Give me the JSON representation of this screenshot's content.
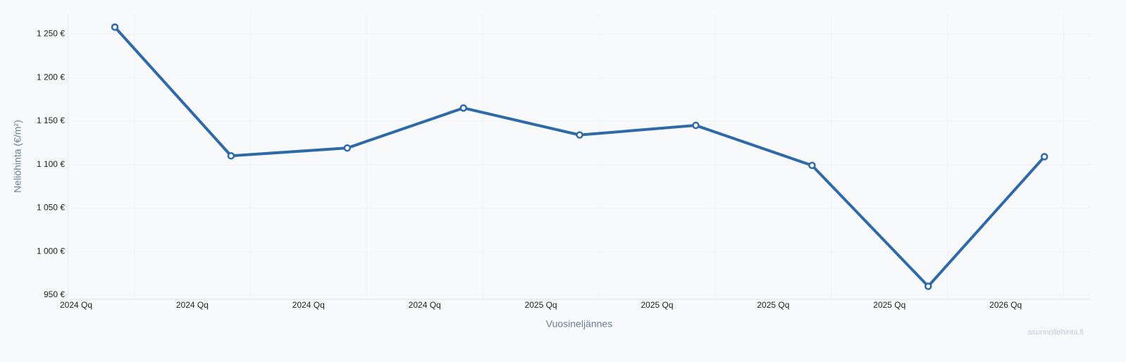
{
  "chart_data": {
    "type": "line",
    "x_label": "Vuosineljännes",
    "y_label": "Neliöhinta (€/m²)",
    "watermark": "asunnollehinta.fi",
    "categories": [
      "2024 Qq",
      "2024 Qq",
      "2024 Qq",
      "2024 Qq",
      "2025 Qq",
      "2025 Qq",
      "2025 Qq",
      "2025 Qq",
      "2026 Qq"
    ],
    "series": [
      {
        "name": "Neliöhinta",
        "color": "#2f6aa6",
        "values": [
          1258,
          1110,
          1119,
          1165,
          1134,
          1145,
          1099,
          960,
          1109
        ]
      }
    ],
    "ylim": [
      945,
      1273
    ],
    "yticks": [
      {
        "value": 950,
        "label": "950 €"
      },
      {
        "value": 1000,
        "label": "1 000 €"
      },
      {
        "value": 1050,
        "label": "1 050 €"
      },
      {
        "value": 1100,
        "label": "1 100 €"
      },
      {
        "value": 1150,
        "label": "1 150 €"
      },
      {
        "value": 1200,
        "label": "1 200 €"
      },
      {
        "value": 1250,
        "label": "1 250 €"
      }
    ],
    "grid": true
  }
}
